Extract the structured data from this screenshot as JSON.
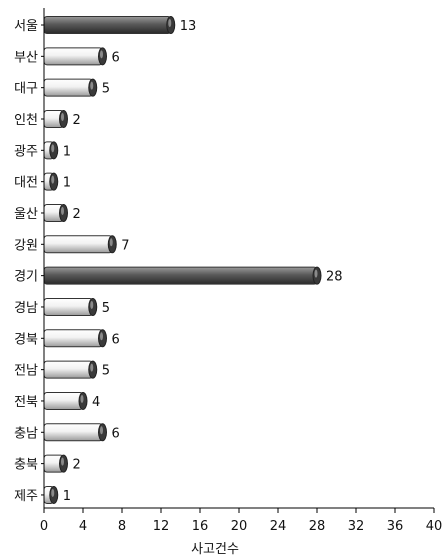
{
  "chart_data": {
    "type": "bar",
    "orientation": "horizontal",
    "categories": [
      "서울",
      "부산",
      "대구",
      "인천",
      "광주",
      "대전",
      "울산",
      "강원",
      "경기",
      "경남",
      "경북",
      "전남",
      "전북",
      "충남",
      "충북",
      "제주"
    ],
    "values": [
      13,
      6,
      5,
      2,
      1,
      1,
      2,
      7,
      28,
      5,
      6,
      5,
      4,
      6,
      2,
      1
    ],
    "xlabel": "사고건수",
    "ylabel": "",
    "xlim": [
      0,
      40
    ],
    "xticks": [
      0,
      4,
      8,
      12,
      16,
      20,
      24,
      28,
      32,
      36,
      40
    ],
    "grid": false,
    "highlighted": [
      "서울",
      "경기"
    ],
    "colors": {
      "bar_fill_light": "#f0f0f0",
      "bar_fill_dark": "#5a5a5a",
      "bar_cap": "#3a3a3a",
      "axis": "#000000"
    }
  }
}
